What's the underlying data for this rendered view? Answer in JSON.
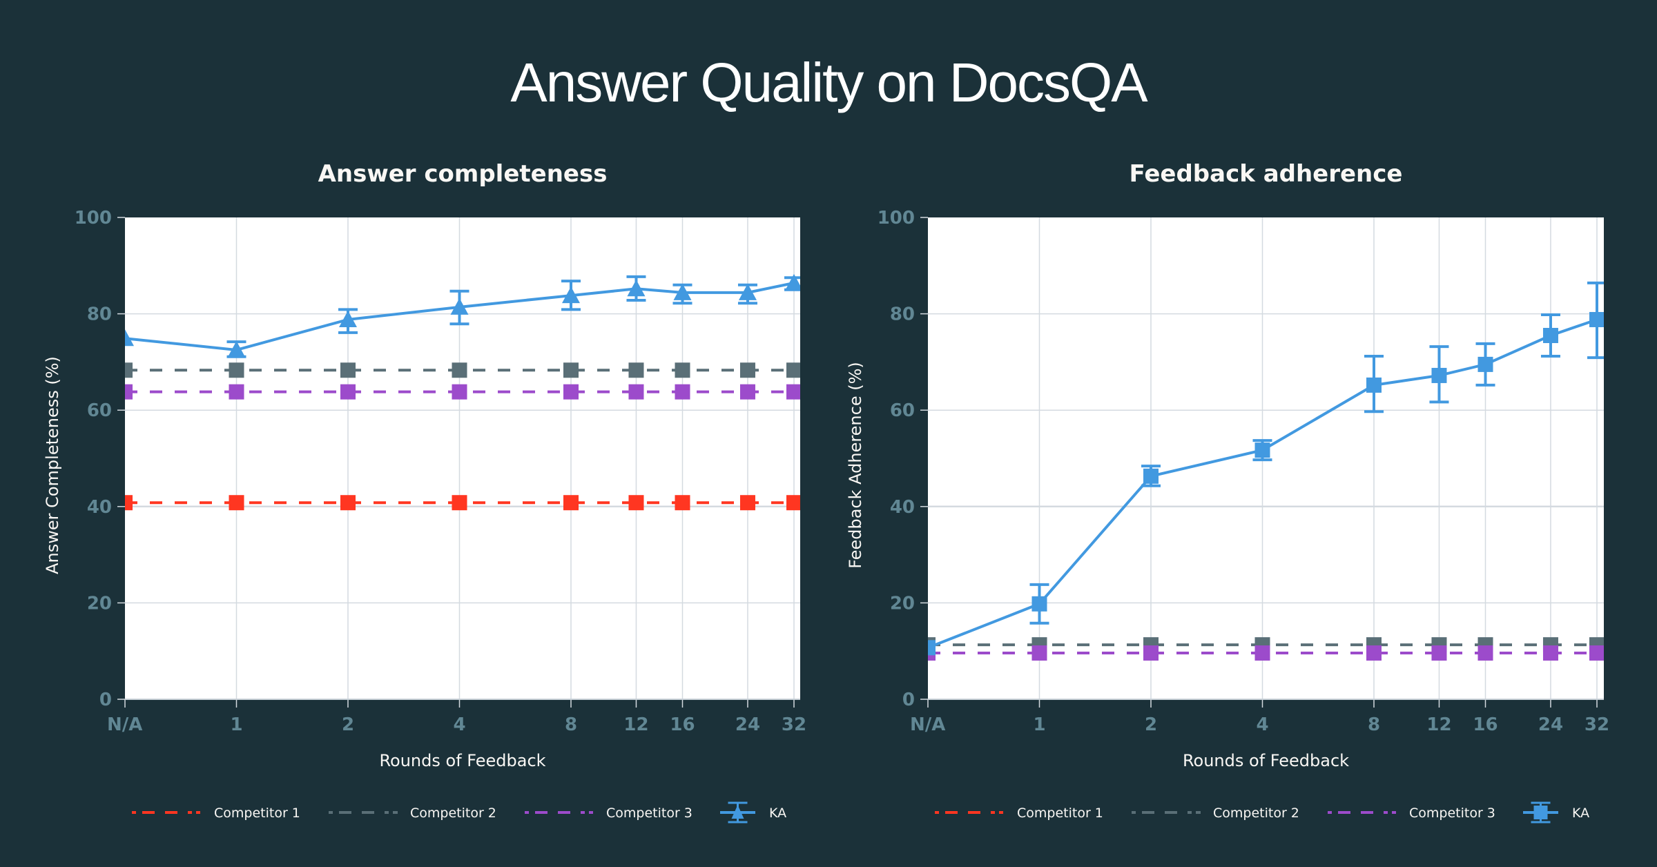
{
  "title": "Answer Quality on DocsQA",
  "colors": {
    "background": "#1B3139",
    "plot_background": "#FFFFFF",
    "grid": "#D4DAE0",
    "tick_label": "#618794",
    "competitor_1": "#FF3621",
    "competitor_2": "#5A6F77",
    "competitor_3": "#9C4BCB",
    "ka": "#4299E0"
  },
  "chart_data": [
    {
      "type": "line",
      "title": "Answer completeness",
      "xlabel": "Rounds of Feedback",
      "ylabel": "Answer Completeness (%)",
      "x_scale": "log2",
      "categories": [
        "N/A",
        "1",
        "2",
        "4",
        "8",
        "12",
        "16",
        "24",
        "32"
      ],
      "x": [
        0.5,
        1,
        2,
        4,
        8,
        12,
        16,
        24,
        32
      ],
      "ylim": [
        0,
        100
      ],
      "yticks": [
        "0",
        "20",
        "40",
        "60",
        "80",
        "100"
      ],
      "grid": true,
      "legend": "bottom",
      "series": [
        {
          "name": "Competitor 1",
          "style": "dashed",
          "marker": "square",
          "color_key": "competitor_1",
          "values": [
            40.8,
            40.8,
            40.8,
            40.8,
            40.8,
            40.8,
            40.8,
            40.8,
            40.8
          ]
        },
        {
          "name": "Competitor 2",
          "style": "dashed",
          "marker": "square",
          "color_key": "competitor_2",
          "values": [
            68.3,
            68.3,
            68.3,
            68.3,
            68.3,
            68.3,
            68.3,
            68.3,
            68.3
          ]
        },
        {
          "name": "Competitor 3",
          "style": "dashed",
          "marker": "square",
          "color_key": "competitor_3",
          "values": [
            63.8,
            63.8,
            63.8,
            63.8,
            63.8,
            63.8,
            63.8,
            63.8,
            63.8
          ]
        },
        {
          "name": "KA",
          "style": "solid",
          "marker": "triangle",
          "color_key": "ka",
          "values": [
            74.9,
            72.5,
            78.8,
            81.4,
            83.8,
            85.2,
            84.4,
            84.4,
            86.4
          ],
          "error_low": [
            null,
            71.1,
            76.1,
            77.9,
            80.9,
            82.8,
            82.2,
            82.2,
            85.0
          ],
          "error_high": [
            null,
            74.2,
            80.9,
            84.7,
            86.8,
            87.7,
            86.0,
            86.0,
            87.5
          ]
        }
      ]
    },
    {
      "type": "line",
      "title": "Feedback adherence",
      "xlabel": "Rounds of Feedback",
      "ylabel": "Feedback Adherence (%)",
      "x_scale": "log2",
      "categories": [
        "N/A",
        "1",
        "2",
        "4",
        "8",
        "12",
        "16",
        "24",
        "32"
      ],
      "x": [
        0.5,
        1,
        2,
        4,
        8,
        12,
        16,
        24,
        32
      ],
      "ylim": [
        0,
        100
      ],
      "yticks": [
        "0",
        "20",
        "40",
        "60",
        "80",
        "100"
      ],
      "grid": true,
      "legend": "bottom",
      "series": [
        {
          "name": "Competitor 1",
          "style": "dashed",
          "marker": "square",
          "color_key": "competitor_1",
          "values": [
            null,
            null,
            null,
            null,
            null,
            null,
            null,
            null,
            null
          ]
        },
        {
          "name": "Competitor 2",
          "style": "dashed",
          "marker": "square",
          "color_key": "competitor_2",
          "values": [
            11.3,
            11.3,
            11.3,
            11.3,
            11.3,
            11.3,
            11.3,
            11.3,
            11.3
          ]
        },
        {
          "name": "Competitor 3",
          "style": "dashed",
          "marker": "square",
          "color_key": "competitor_3",
          "values": [
            9.6,
            9.6,
            9.6,
            9.6,
            9.6,
            9.6,
            9.6,
            9.6,
            9.6
          ]
        },
        {
          "name": "KA",
          "style": "solid",
          "marker": "square",
          "color_key": "ka",
          "values": [
            10.7,
            19.8,
            46.3,
            51.7,
            65.2,
            67.2,
            69.5,
            75.5,
            78.8
          ],
          "error_low": [
            null,
            15.8,
            44.3,
            49.7,
            59.7,
            61.7,
            65.2,
            71.2,
            70.9
          ],
          "error_high": [
            null,
            23.8,
            48.4,
            53.7,
            71.2,
            73.2,
            73.8,
            79.8,
            86.4
          ]
        }
      ]
    }
  ]
}
